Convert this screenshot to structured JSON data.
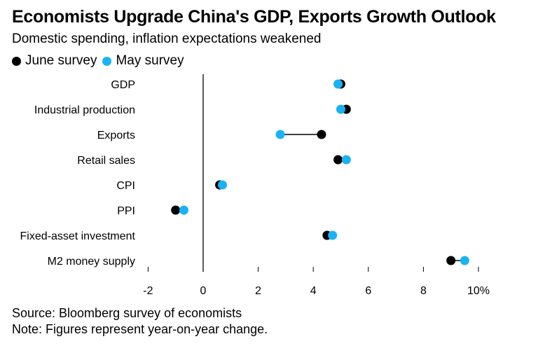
{
  "chart_data": {
    "type": "dot-plot",
    "title": "Economists Upgrade China's GDP, Exports Growth Outlook",
    "subtitle": "Domestic spending, inflation expectations weakened",
    "series": [
      {
        "name": "June survey",
        "color": "#000000",
        "values": [
          5.0,
          5.2,
          4.3,
          4.9,
          0.6,
          -1.0,
          4.5,
          9.0
        ]
      },
      {
        "name": "May survey",
        "color": "#1ab2f4",
        "values": [
          4.9,
          5.0,
          2.8,
          5.2,
          0.7,
          -0.7,
          4.7,
          9.5
        ]
      }
    ],
    "categories": [
      "GDP",
      "Industrial production",
      "Exports",
      "Retail sales",
      "CPI",
      "PPI",
      "Fixed-asset investment",
      "M2 money supply"
    ],
    "xlim": [
      -2,
      10
    ],
    "xticks": [
      -2,
      0,
      2,
      4,
      6,
      8,
      10
    ],
    "xtick_labels": [
      "-2",
      "0",
      "2",
      "4",
      "6",
      "8",
      "10%"
    ],
    "xlabel": "",
    "ylabel": ""
  },
  "footer": {
    "source": "Source: Bloomberg survey of economists",
    "note": "Note: Figures represent year-on-year change."
  }
}
